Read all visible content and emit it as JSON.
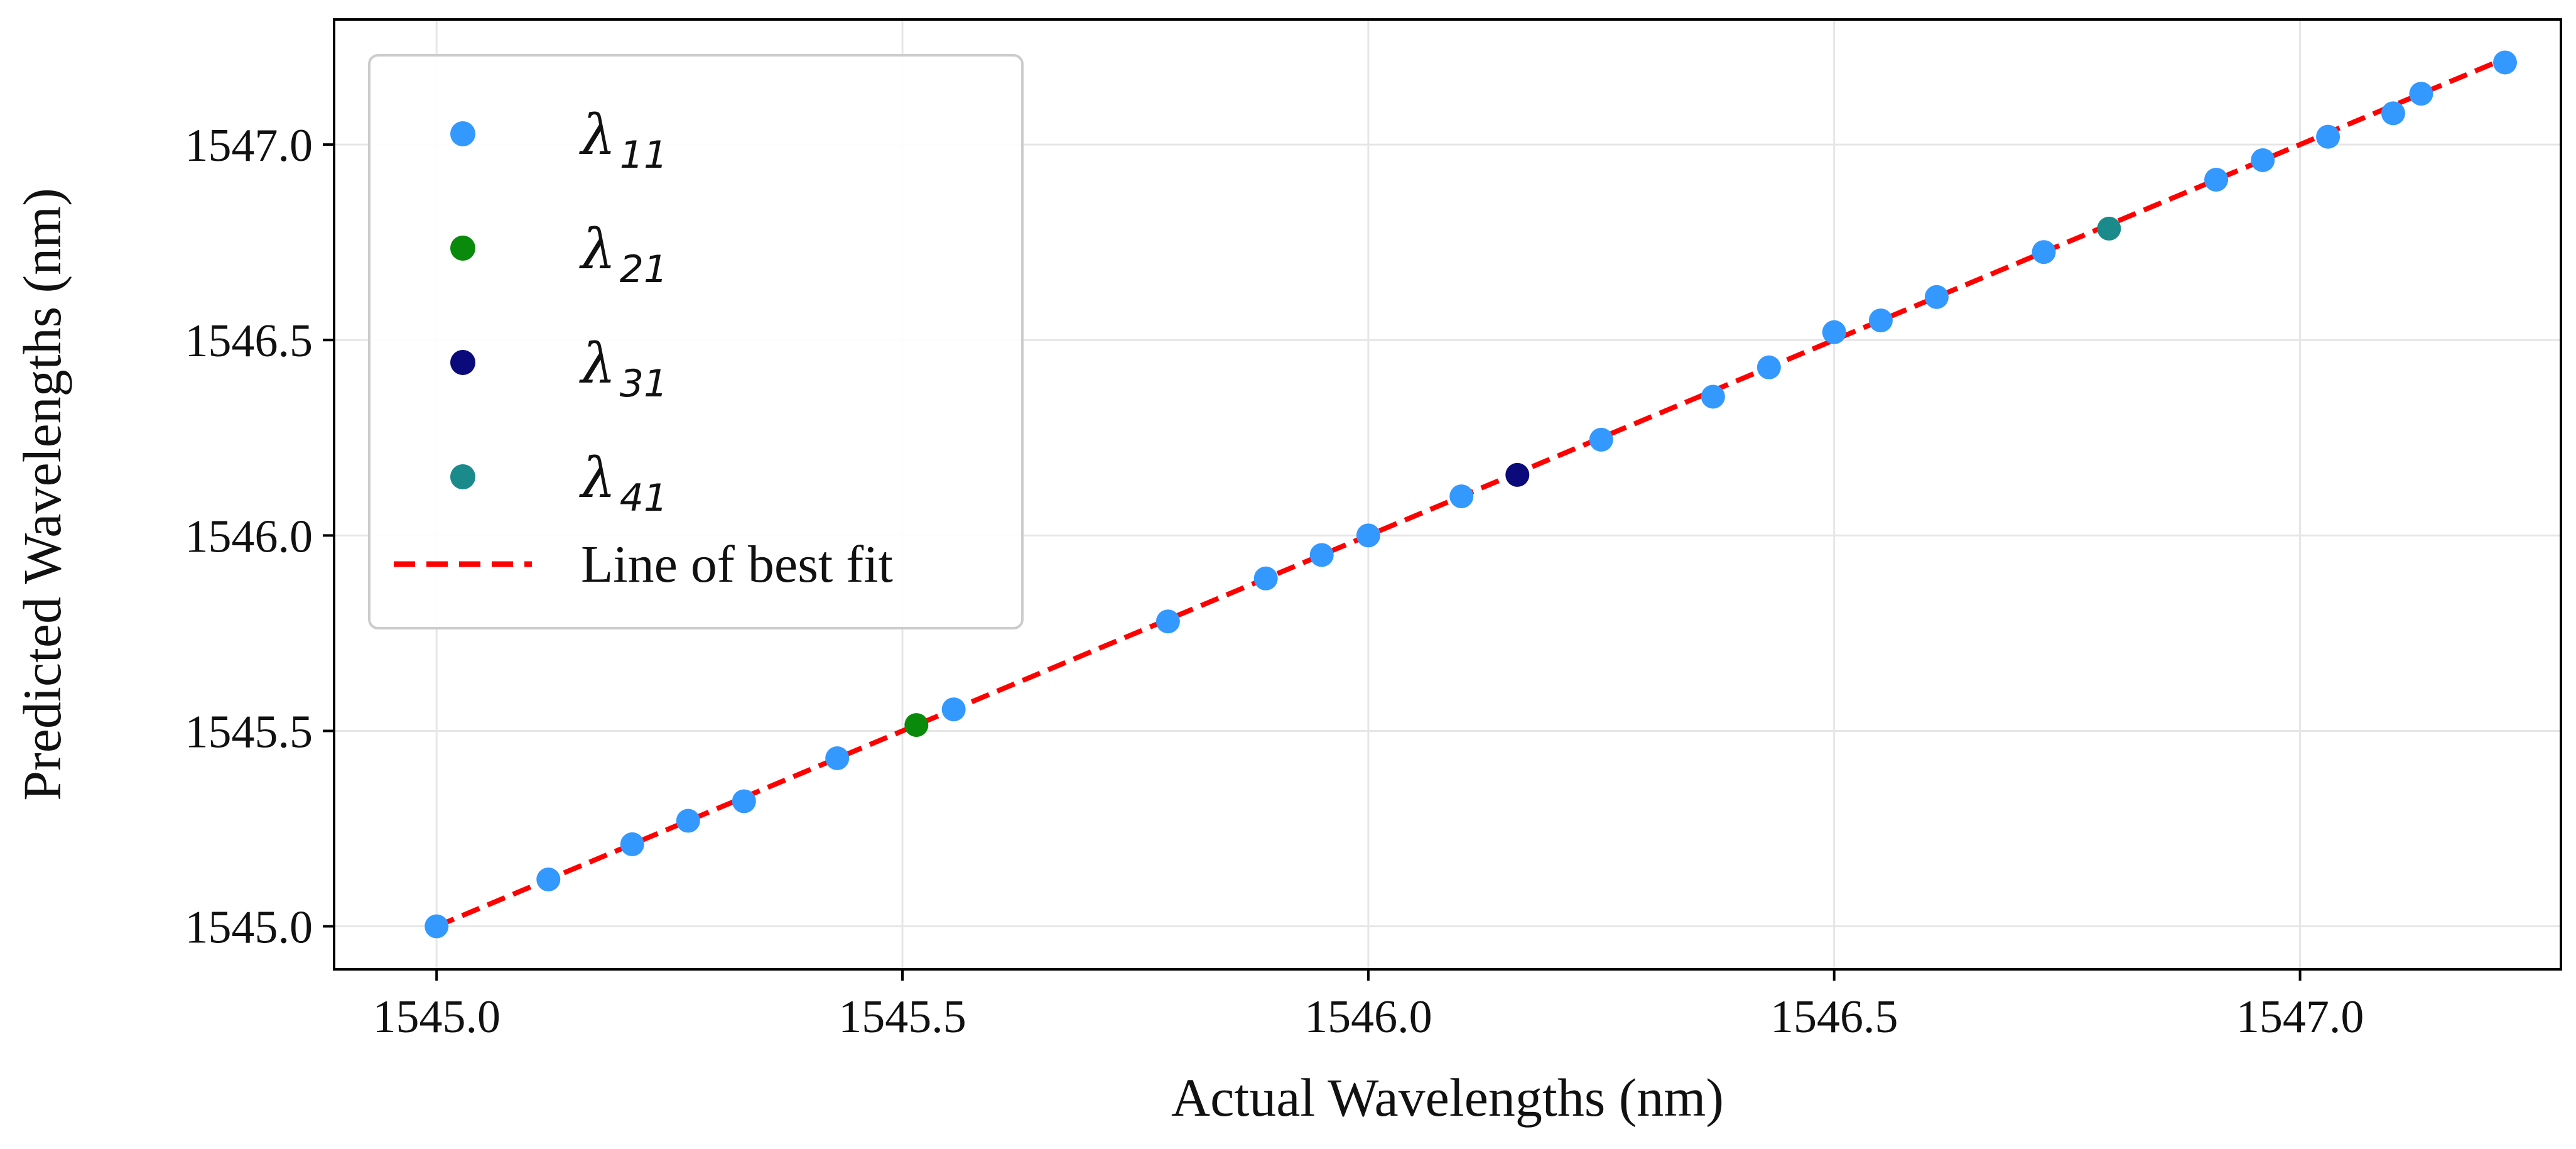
{
  "chart_data": {
    "type": "scatter",
    "title": "",
    "xlabel": "Actual Wavelengths (nm)",
    "ylabel": "Predicted Wavelengths (nm)",
    "xlim": [
      1544.89,
      1547.28
    ],
    "ylim": [
      1544.89,
      1547.32
    ],
    "xticks": [
      1545.0,
      1545.5,
      1546.0,
      1546.5,
      1547.0
    ],
    "yticks": [
      1545.0,
      1545.5,
      1546.0,
      1546.5,
      1547.0
    ],
    "xtick_labels": [
      "1545.0",
      "1545.5",
      "1546.0",
      "1546.5",
      "1547.0"
    ],
    "ytick_labels": [
      "1545.0",
      "1545.5",
      "1546.0",
      "1546.5",
      "1547.0"
    ],
    "grid": true,
    "legend_position": "top-left",
    "series": [
      {
        "name": "λ11",
        "symbol": "λ",
        "subscript": "11",
        "color": "#3399ff",
        "marker": "circle",
        "x": [
          1545.0,
          1545.12,
          1545.21,
          1545.27,
          1545.33,
          1545.43,
          1545.555,
          1545.785,
          1545.89,
          1545.95,
          1546.0,
          1546.1,
          1546.25,
          1546.37,
          1546.43,
          1546.5,
          1546.55,
          1546.61,
          1546.725,
          1546.91,
          1546.96,
          1547.03,
          1547.1,
          1547.13,
          1547.22
        ],
        "y": [
          1545.0,
          1545.12,
          1545.21,
          1545.27,
          1545.32,
          1545.43,
          1545.555,
          1545.78,
          1545.89,
          1545.95,
          1546.0,
          1546.1,
          1546.245,
          1546.355,
          1546.43,
          1546.52,
          1546.55,
          1546.61,
          1546.725,
          1546.91,
          1546.96,
          1547.02,
          1547.08,
          1547.13,
          1547.21
        ]
      },
      {
        "name": "λ21",
        "symbol": "λ",
        "subscript": "21",
        "color": "#0a8a0a",
        "marker": "circle",
        "x": [
          1545.515
        ],
        "y": [
          1545.515
        ]
      },
      {
        "name": "λ31",
        "symbol": "λ",
        "subscript": "31",
        "color": "#0a0a7a",
        "marker": "circle",
        "x": [
          1546.16
        ],
        "y": [
          1546.155
        ]
      },
      {
        "name": "λ41",
        "symbol": "λ",
        "subscript": "41",
        "color": "#1a8a8a",
        "marker": "circle",
        "x": [
          1546.795
        ],
        "y": [
          1546.785
        ]
      }
    ],
    "fit_line": {
      "name": "Line of best fit",
      "color": "#ff0000",
      "style": "dashed",
      "x": [
        1545.0,
        1547.22
      ],
      "y": [
        1545.0,
        1547.22
      ]
    }
  }
}
